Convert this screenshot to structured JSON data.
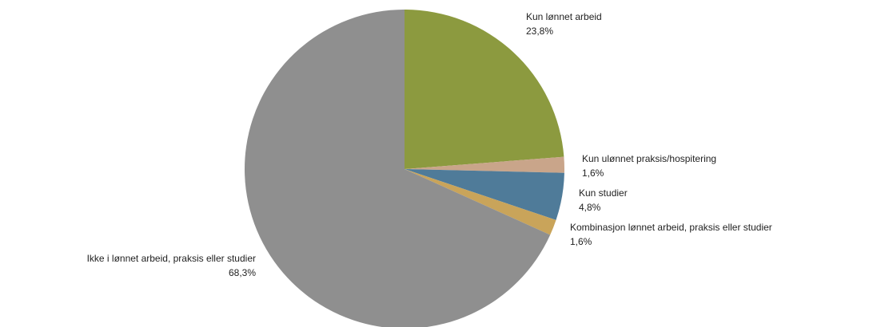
{
  "chart_data": {
    "type": "pie",
    "categories": [
      "Kun lønnet arbeid",
      "Kun ulønnet praksis/hospitering",
      "Kun studier",
      "Kombinasjon lønnet arbeid, praksis eller studier",
      "Ikke i lønnet arbeid, praksis eller studier"
    ],
    "values": [
      23.8,
      1.6,
      4.8,
      1.6,
      68.3
    ],
    "value_labels": [
      "23,8%",
      "1,6%",
      "4,8%",
      "1,6%",
      "68,3%"
    ],
    "colors": [
      "#8c9a3f",
      "#c9a58a",
      "#4f7b99",
      "#c9a45a",
      "#8f8f8f"
    ]
  }
}
